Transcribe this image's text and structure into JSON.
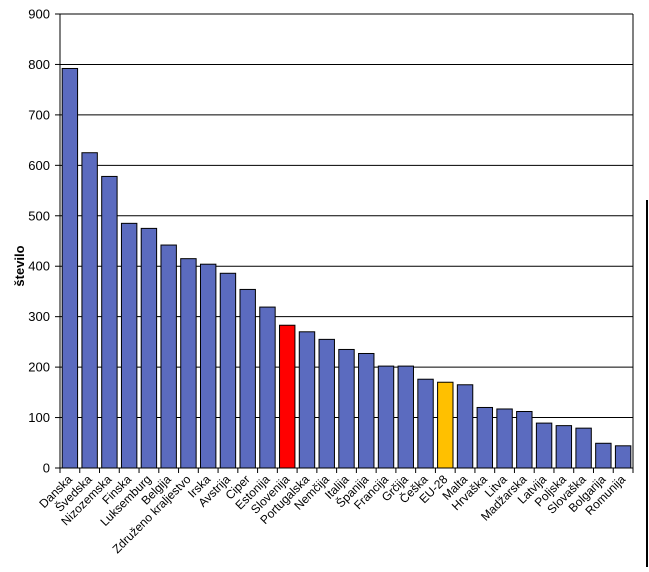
{
  "chart_data": {
    "type": "bar",
    "title": "",
    "xlabel": "",
    "ylabel": "število",
    "ylim": [
      0,
      900
    ],
    "yticks": [
      0,
      100,
      200,
      300,
      400,
      500,
      600,
      700,
      800,
      900
    ],
    "grid": true,
    "legend": "none",
    "categories": [
      "Danska",
      "Švedska",
      "Nizozemska",
      "Finska",
      "Luksemburg",
      "Belgija",
      "Združeno kraljestvo",
      "Irska",
      "Avstrija",
      "Ciper",
      "Estonija",
      "Slovenija",
      "Portugalska",
      "Nemčija",
      "Italija",
      "Španija",
      "Francija",
      "Grčija",
      "Češka",
      "EU-28",
      "Malta",
      "Hrvaška",
      "Litva",
      "Madžarska",
      "Latvija",
      "Poljska",
      "Slovaška",
      "Bolgarija",
      "Romunija"
    ],
    "values": [
      792,
      625,
      578,
      485,
      475,
      442,
      415,
      404,
      386,
      354,
      319,
      283,
      270,
      255,
      235,
      227,
      202,
      202,
      176,
      170,
      165,
      120,
      117,
      112,
      89,
      84,
      79,
      49,
      44
    ],
    "colors": {
      "default": "#5b6bbf",
      "Slovenija": "#ff0000",
      "EU-28": "#ffc000",
      "bar_stroke": "#000000",
      "grid": "#000000"
    }
  }
}
